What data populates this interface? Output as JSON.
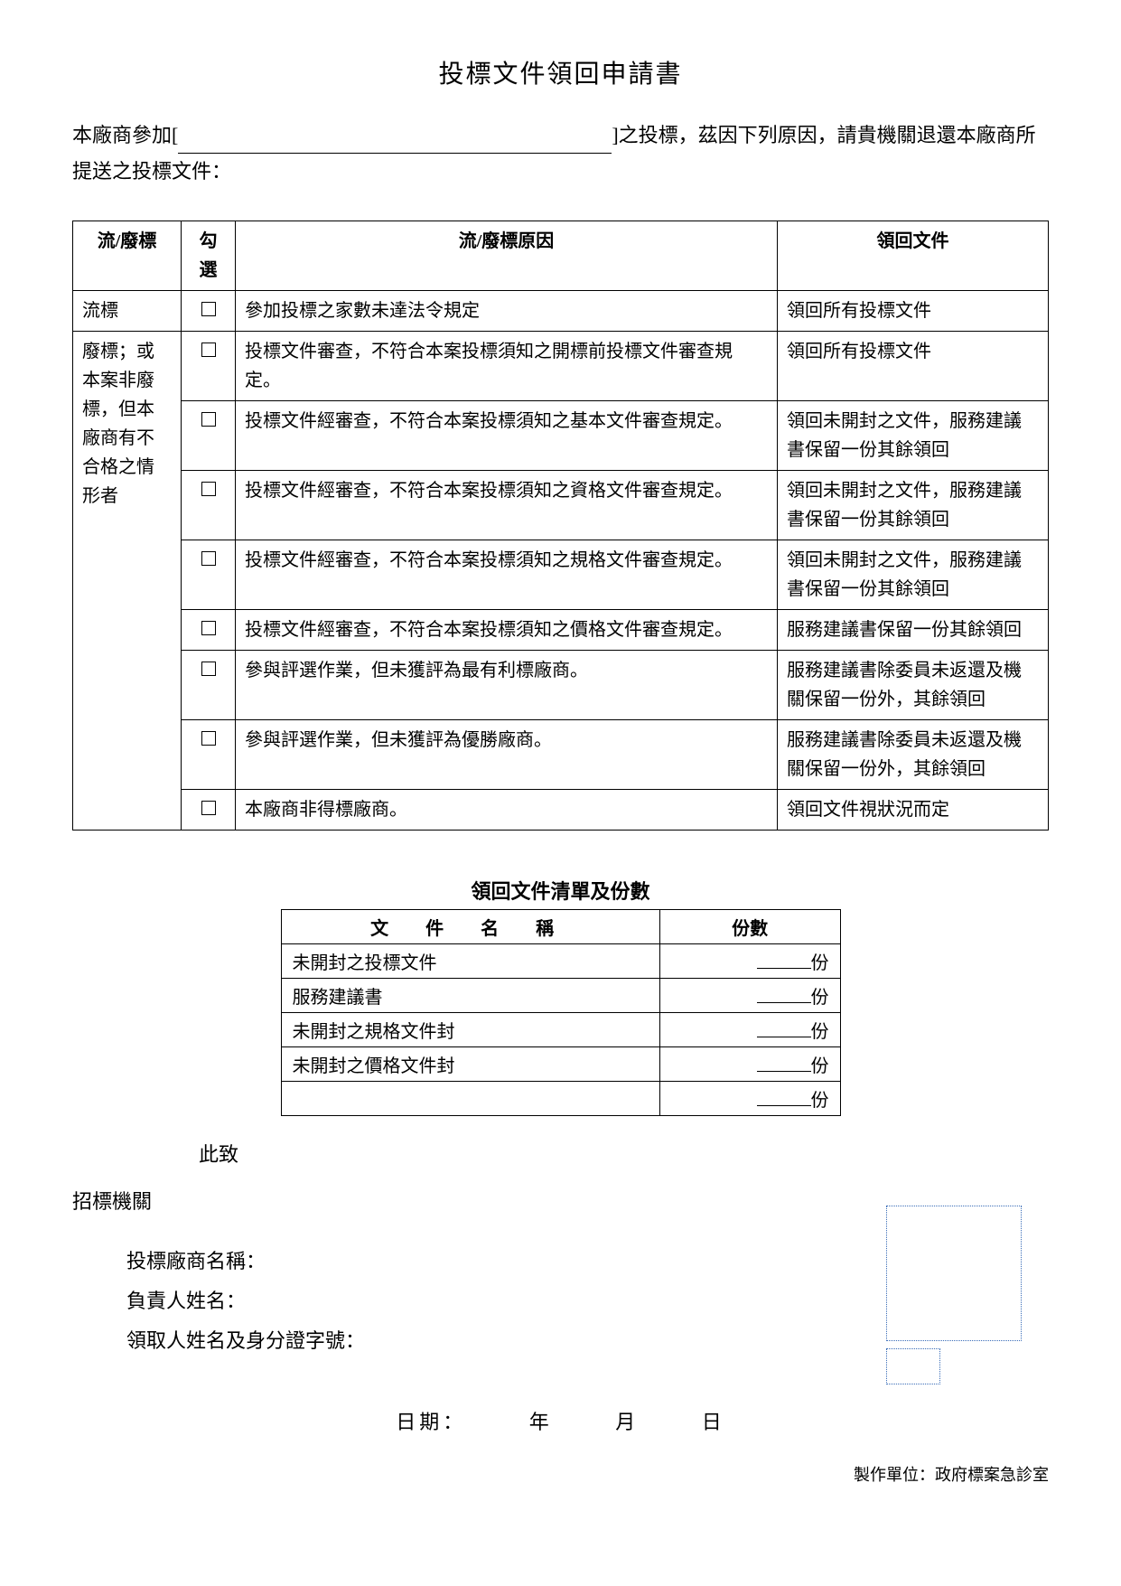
{
  "title": "投標文件領回申請書",
  "intro": {
    "prefix": "本廠商參加[",
    "suffix": "]之投標，茲因下列原因，請貴機關退還本廠商所提送之投標文件："
  },
  "mainTable": {
    "headers": [
      "流/廢標",
      "勾選",
      "流/廢標原因",
      "領回文件"
    ],
    "typeCol": {
      "row1": "流標",
      "row2merged": "廢標；或本案非廢標，但本廠商有不合格之情形者"
    },
    "rows": [
      {
        "reason": "參加投標之家數未達法令規定",
        "return": "領回所有投標文件"
      },
      {
        "reason": "投標文件審查，不符合本案投標須知之開標前投標文件審查規定。",
        "return": "領回所有投標文件"
      },
      {
        "reason": "投標文件經審查，不符合本案投標須知之基本文件審查規定。",
        "return": "領回未開封之文件，服務建議書保留一份其餘領回"
      },
      {
        "reason": "投標文件經審查，不符合本案投標須知之資格文件審查規定。",
        "return": "領回未開封之文件，服務建議書保留一份其餘領回"
      },
      {
        "reason": "投標文件經審查，不符合本案投標須知之規格文件審查規定。",
        "return": "領回未開封之文件，服務建議書保留一份其餘領回"
      },
      {
        "reason": "投標文件經審查，不符合本案投標須知之價格文件審查規定。",
        "return": "服務建議書保留一份其餘領回"
      },
      {
        "reason": "參與評選作業，但未獲評為最有利標廠商。",
        "return": "服務建議書除委員未返還及機關保留一份外，其餘領回"
      },
      {
        "reason": "參與評選作業，但未獲評為優勝廠商。",
        "return": "服務建議書除委員未返還及機關保留一份外，其餘領回"
      },
      {
        "reason": "本廠商非得標廠商。",
        "return": "領回文件視狀況而定"
      }
    ]
  },
  "docSection": {
    "title": "領回文件清單及份數",
    "headers": {
      "name": "文 件 名 稱",
      "qty": "份數"
    },
    "rows": [
      {
        "name": "未開封之投標文件",
        "unit": "份"
      },
      {
        "name": "服務建議書",
        "unit": "份"
      },
      {
        "name": "未開封之規格文件封",
        "unit": "份"
      },
      {
        "name": "未開封之價格文件封",
        "unit": "份"
      },
      {
        "name": "",
        "unit": "份"
      }
    ]
  },
  "closing": "此致",
  "org": "招標機關",
  "signLines": {
    "vendor": "投標廠商名稱：",
    "person": "負責人姓名：",
    "receiver": "領取人姓名及身分證字號："
  },
  "date": {
    "label": "日期：",
    "year": "年",
    "month": "月",
    "day": "日"
  },
  "footer": "製作單位：政府標案急診室"
}
